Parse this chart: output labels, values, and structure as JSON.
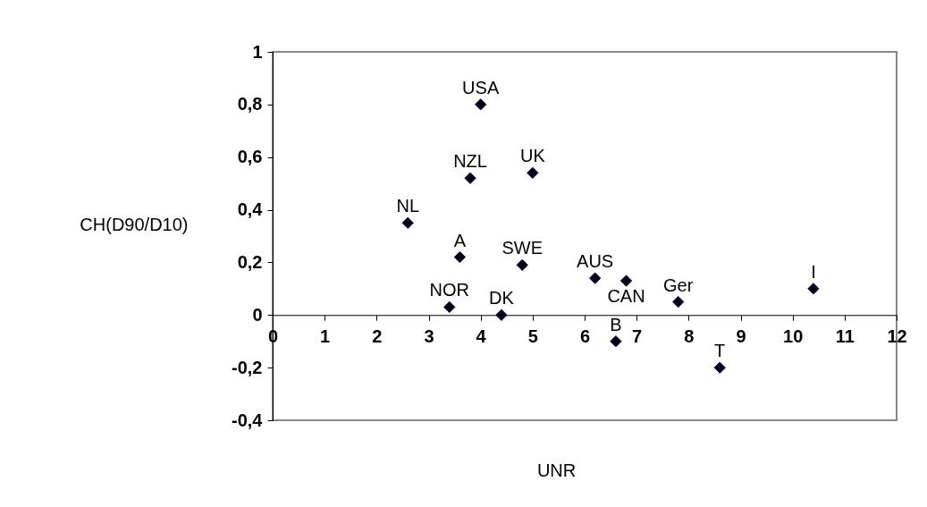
{
  "chart_data": {
    "type": "scatter",
    "xlabel": "UNR",
    "ylabel": "CH(D90/D10)",
    "x": [
      4.0,
      5.0,
      3.8,
      2.6,
      3.6,
      4.8,
      3.4,
      4.4,
      6.2,
      6.8,
      6.6,
      7.8,
      8.6,
      10.4
    ],
    "series": [
      {
        "color": "#000000",
        "values": [
          0.8,
          0.54,
          0.52,
          0.35,
          0.22,
          0.19,
          0.03,
          0.0,
          0.14,
          0.13,
          -0.1,
          0.05,
          -0.2,
          0.1
        ]
      }
    ],
    "annotations": [
      {
        "text": "USA",
        "x": 4.0,
        "y": 0.8
      },
      {
        "text": "UK",
        "x": 5.0,
        "y": 0.54
      },
      {
        "text": "NZL",
        "x": 3.8,
        "y": 0.52
      },
      {
        "text": "NL",
        "x": 2.6,
        "y": 0.35
      },
      {
        "text": "A",
        "x": 3.6,
        "y": 0.22
      },
      {
        "text": "SWE",
        "x": 4.8,
        "y": 0.19
      },
      {
        "text": "NOR",
        "x": 3.4,
        "y": 0.03
      },
      {
        "text": "DK",
        "x": 4.4,
        "y": 0.0
      },
      {
        "text": "AUS",
        "x": 6.2,
        "y": 0.14
      },
      {
        "text": "CAN",
        "x": 6.8,
        "y": 0.13
      },
      {
        "text": "B",
        "x": 6.6,
        "y": -0.1
      },
      {
        "text": "Ger",
        "x": 7.8,
        "y": 0.05
      },
      {
        "text": "T",
        "x": 8.6,
        "y": -0.2
      },
      {
        "text": "I",
        "x": 10.4,
        "y": 0.1
      }
    ],
    "xlim": [
      0,
      12
    ],
    "xticks": [
      0,
      1,
      2,
      3,
      4,
      5,
      6,
      7,
      8,
      9,
      10,
      11,
      12
    ],
    "ylim": [
      -0.4,
      1
    ],
    "yticks": [
      {
        "value": -0.4,
        "label": "-0,4"
      },
      {
        "value": -0.2,
        "label": "-0,2"
      },
      0,
      {
        "value": 0.2,
        "label": "0,2"
      },
      {
        "value": 0.4,
        "label": "0,4"
      },
      {
        "value": 0.6,
        "label": "0,6"
      },
      {
        "value": 0.8,
        "label": "0,8"
      },
      1
    ],
    "marker": "diamond",
    "grid": false,
    "legend": false
  }
}
